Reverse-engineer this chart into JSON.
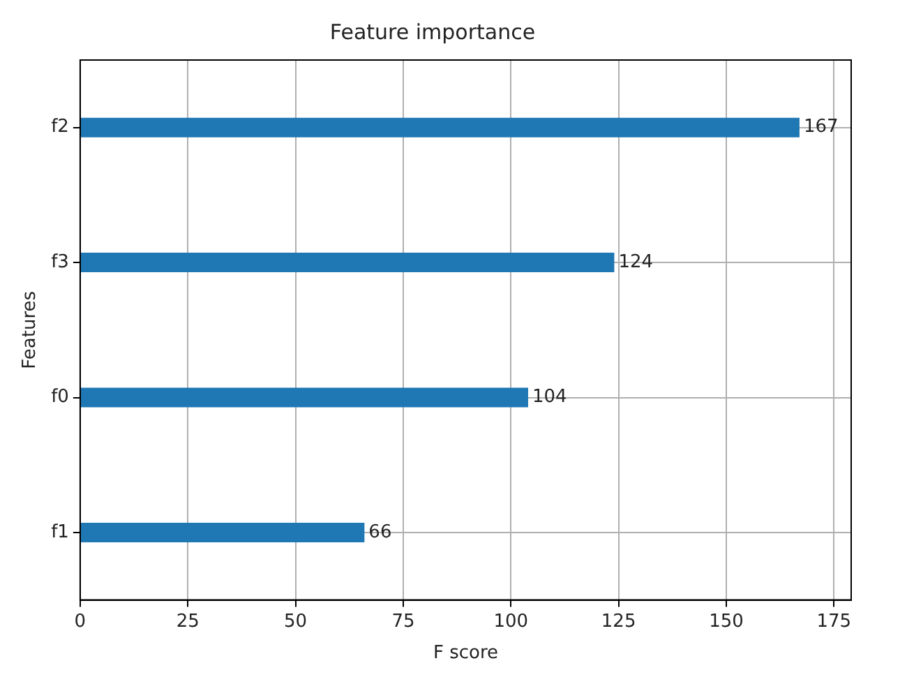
{
  "chart_data": {
    "type": "bar",
    "orientation": "horizontal",
    "title": "Feature importance",
    "xlabel": "F score",
    "ylabel": "Features",
    "categories": [
      "f2",
      "f3",
      "f0",
      "f1"
    ],
    "values": [
      167,
      124,
      104,
      66
    ],
    "color": "#1f77b4",
    "xlim": [
      0,
      179
    ],
    "xticks": [
      0,
      25,
      50,
      75,
      100,
      125,
      150,
      175
    ],
    "grid": true,
    "data_labels": true,
    "legend": false
  }
}
